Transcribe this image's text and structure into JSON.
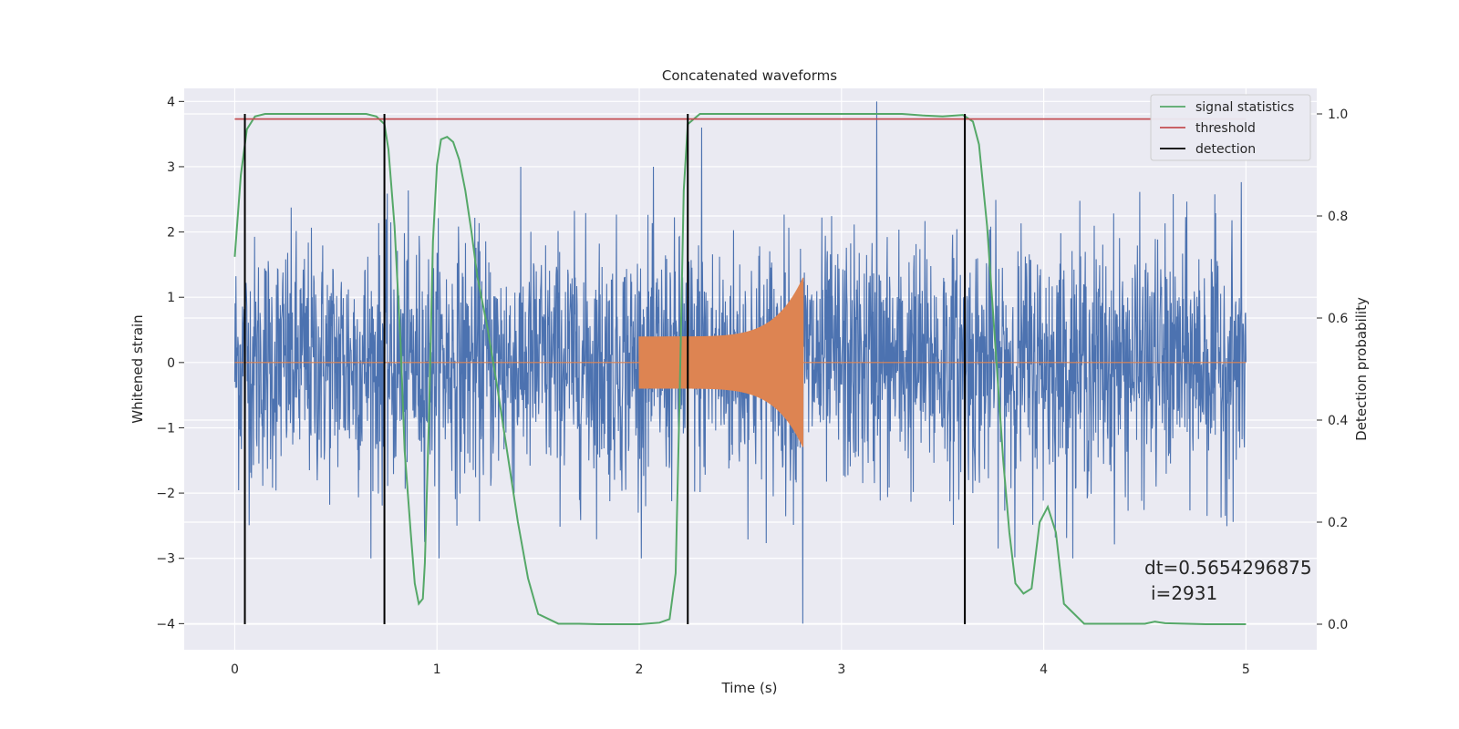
{
  "chart_data": {
    "type": "line",
    "title": "Concatenated waveforms",
    "xlabel": "Time (s)",
    "ylabel": "Whitened strain",
    "ylabel_right": "Detection probability",
    "xlim": [
      -0.25,
      5.35
    ],
    "ylim": [
      -4.4,
      4.2
    ],
    "ylim_right": [
      -0.05,
      1.05
    ],
    "xticks": [
      0,
      1,
      2,
      3,
      4,
      5
    ],
    "yticks": [
      -4,
      -3,
      -2,
      -1,
      0,
      1,
      2,
      3,
      4
    ],
    "yticks_right": [
      0.0,
      0.2,
      0.4,
      0.6,
      0.8,
      1.0
    ],
    "xtick_labels": [
      "0",
      "1",
      "2",
      "3",
      "4",
      "5"
    ],
    "ytick_labels": [
      "−4",
      "−3",
      "−2",
      "−1",
      "0",
      "1",
      "2",
      "3",
      "4"
    ],
    "ytick_right_labels": [
      "0.0",
      "0.2",
      "0.4",
      "0.6",
      "0.8",
      "1.0"
    ],
    "grid": true,
    "legend_position": "top-right",
    "colors": {
      "background": "#eaeaf2",
      "strain": "#4c72b0",
      "injection": "#dd8452",
      "signal_statistics": "#55a868",
      "threshold": "#c44e52",
      "detection": "#000000"
    },
    "series": [
      {
        "name": "signal statistics",
        "axis": "right",
        "x": [
          0.0,
          0.03,
          0.06,
          0.1,
          0.15,
          0.3,
          0.5,
          0.65,
          0.7,
          0.74,
          0.76,
          0.79,
          0.82,
          0.84,
          0.87,
          0.89,
          0.91,
          0.93,
          0.94,
          0.96,
          0.98,
          1.0,
          1.02,
          1.05,
          1.08,
          1.11,
          1.14,
          1.17,
          1.2,
          1.25,
          1.3,
          1.35,
          1.4,
          1.45,
          1.5,
          1.6,
          1.7,
          1.8,
          1.9,
          2.0,
          2.1,
          2.15,
          2.18,
          2.2,
          2.22,
          2.24,
          2.3,
          2.5,
          2.8,
          3.0,
          3.3,
          3.4,
          3.5,
          3.6,
          3.65,
          3.68,
          3.72,
          3.76,
          3.8,
          3.83,
          3.86,
          3.9,
          3.94,
          3.98,
          4.02,
          4.06,
          4.1,
          4.2,
          4.4,
          4.5,
          4.55,
          4.6,
          4.8,
          5.0
        ],
        "y": [
          0.72,
          0.88,
          0.97,
          0.995,
          1.0,
          1.0,
          1.0,
          1.0,
          0.995,
          0.98,
          0.93,
          0.78,
          0.55,
          0.34,
          0.18,
          0.08,
          0.04,
          0.05,
          0.12,
          0.4,
          0.75,
          0.9,
          0.95,
          0.955,
          0.945,
          0.91,
          0.85,
          0.77,
          0.68,
          0.58,
          0.46,
          0.33,
          0.2,
          0.09,
          0.02,
          0.001,
          0.001,
          0.0,
          0.0,
          0.0,
          0.003,
          0.01,
          0.1,
          0.45,
          0.85,
          0.98,
          1.0,
          1.0,
          1.0,
          1.0,
          1.0,
          0.997,
          0.995,
          0.998,
          0.985,
          0.94,
          0.78,
          0.55,
          0.32,
          0.18,
          0.08,
          0.06,
          0.07,
          0.2,
          0.23,
          0.18,
          0.04,
          0.001,
          0.001,
          0.001,
          0.005,
          0.002,
          0.0,
          0.0
        ]
      },
      {
        "name": "threshold",
        "axis": "right",
        "x": [
          0.0,
          5.0
        ],
        "y": [
          0.99,
          0.99
        ]
      },
      {
        "name": "detection",
        "axis": "right",
        "x": [
          0.05,
          0.74,
          2.24,
          3.61
        ],
        "y": [
          [
            0.0,
            1.0
          ],
          [
            0.0,
            1.0
          ],
          [
            0.0,
            1.0
          ],
          [
            0.0,
            1.0
          ]
        ]
      }
    ],
    "strain_summary": {
      "x_range": [
        0.0,
        5.0
      ],
      "typical_peak": 2.0,
      "extreme_min": -4.0,
      "extreme_max": 4.0
    },
    "injection_summary": {
      "x_range": [
        2.0,
        2.81
      ],
      "amplitude_start": 0.4,
      "amplitude_end": 1.3,
      "chirp": true
    },
    "annotation": {
      "line1": "dt=0.5654296875",
      "line2": "i=2931"
    }
  }
}
